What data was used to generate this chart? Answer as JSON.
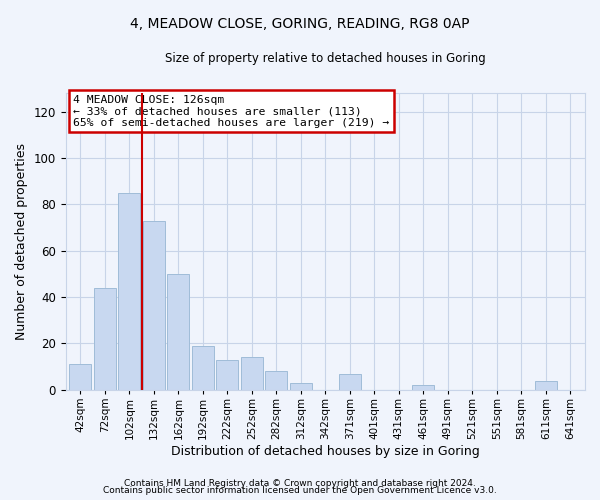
{
  "title": "4, MEADOW CLOSE, GORING, READING, RG8 0AP",
  "subtitle": "Size of property relative to detached houses in Goring",
  "xlabel": "Distribution of detached houses by size in Goring",
  "ylabel": "Number of detached properties",
  "bar_labels": [
    "42sqm",
    "72sqm",
    "102sqm",
    "132sqm",
    "162sqm",
    "192sqm",
    "222sqm",
    "252sqm",
    "282sqm",
    "312sqm",
    "342sqm",
    "371sqm",
    "401sqm",
    "431sqm",
    "461sqm",
    "491sqm",
    "521sqm",
    "551sqm",
    "581sqm",
    "611sqm",
    "641sqm"
  ],
  "bar_values": [
    11,
    44,
    85,
    73,
    50,
    19,
    13,
    14,
    8,
    3,
    0,
    7,
    0,
    0,
    2,
    0,
    0,
    0,
    0,
    4,
    0
  ],
  "bar_color": "#c8d8f0",
  "bar_edgecolor": "#a0bcd8",
  "ylim": [
    0,
    128
  ],
  "yticks": [
    0,
    20,
    40,
    60,
    80,
    100,
    120
  ],
  "vline_color": "#cc0000",
  "annotation_title": "4 MEADOW CLOSE: 126sqm",
  "annotation_line1": "← 33% of detached houses are smaller (113)",
  "annotation_line2": "65% of semi-detached houses are larger (219) →",
  "footer1": "Contains HM Land Registry data © Crown copyright and database right 2024.",
  "footer2": "Contains public sector information licensed under the Open Government Licence v3.0.",
  "background_color": "#f0f4fc",
  "grid_color": "#c8d4e8"
}
